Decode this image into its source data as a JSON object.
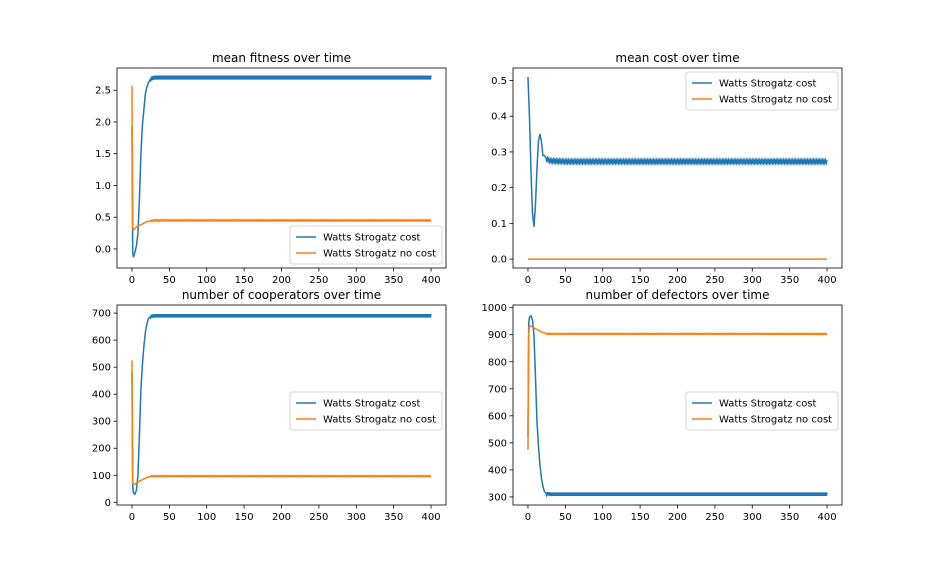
{
  "chart_data": [
    {
      "type": "line",
      "title": "mean fitness over time",
      "xlabel": "",
      "ylabel": "",
      "xlim": [
        -20,
        420
      ],
      "ylim": [
        -0.3,
        2.85
      ],
      "xticks": [
        0,
        50,
        100,
        150,
        200,
        250,
        300,
        350,
        400
      ],
      "yticks": [
        0.0,
        0.5,
        1.0,
        1.5,
        2.0,
        2.5
      ],
      "ytick_labels": [
        "0.0",
        "0.5",
        "1.0",
        "1.5",
        "2.0",
        "2.5"
      ],
      "legend": "lower-right",
      "series": [
        {
          "name": "Watts Strogatz cost",
          "color": "#1f77b4",
          "x": [
            0,
            1,
            2,
            4,
            6,
            8,
            10,
            12,
            14,
            16,
            18,
            20,
            22,
            25,
            30,
            50,
            100,
            200,
            300,
            400
          ],
          "y": [
            1.93,
            -0.05,
            -0.13,
            -0.05,
            0.05,
            0.25,
            0.8,
            1.5,
            1.95,
            2.2,
            2.45,
            2.55,
            2.62,
            2.68,
            2.7,
            2.7,
            2.7,
            2.7,
            2.7,
            2.7
          ],
          "oscillation": 0.03
        },
        {
          "name": "Watts Strogatz no cost",
          "color": "#ff7f0e",
          "x": [
            0,
            1,
            2,
            4,
            6,
            8,
            10,
            15,
            20,
            25,
            30,
            50,
            100,
            200,
            300,
            400
          ],
          "y": [
            2.57,
            0.35,
            0.3,
            0.32,
            0.35,
            0.36,
            0.37,
            0.4,
            0.43,
            0.44,
            0.45,
            0.45,
            0.45,
            0.45,
            0.45,
            0.45
          ],
          "oscillation": 0.008
        }
      ]
    },
    {
      "type": "line",
      "title": "mean cost over time",
      "xlabel": "",
      "ylabel": "",
      "xlim": [
        -20,
        420
      ],
      "ylim": [
        -0.025,
        0.535
      ],
      "xticks": [
        0,
        50,
        100,
        150,
        200,
        250,
        300,
        350,
        400
      ],
      "yticks": [
        0.0,
        0.1,
        0.2,
        0.3,
        0.4,
        0.5
      ],
      "ytick_labels": [
        "0.0",
        "0.1",
        "0.2",
        "0.3",
        "0.4",
        "0.5"
      ],
      "legend": "upper-right",
      "series": [
        {
          "name": "Watts Strogatz cost",
          "color": "#1f77b4",
          "x": [
            0,
            2,
            4,
            6,
            8,
            10,
            12,
            14,
            16,
            18,
            20,
            22,
            25,
            30,
            50,
            100,
            200,
            300,
            400
          ],
          "y": [
            0.51,
            0.4,
            0.25,
            0.13,
            0.09,
            0.15,
            0.25,
            0.33,
            0.35,
            0.33,
            0.29,
            0.29,
            0.28,
            0.275,
            0.273,
            0.273,
            0.273,
            0.273,
            0.273
          ],
          "oscillation": 0.004
        },
        {
          "name": "Watts Strogatz no cost",
          "color": "#ff7f0e",
          "x": [
            0,
            400
          ],
          "y": [
            0.0,
            0.0
          ],
          "oscillation": 0
        }
      ]
    },
    {
      "type": "line",
      "title": "number of cooperators over time",
      "xlabel": "",
      "ylabel": "",
      "xlim": [
        -20,
        420
      ],
      "ylim": [
        -10,
        730
      ],
      "xticks": [
        0,
        50,
        100,
        150,
        200,
        250,
        300,
        350,
        400
      ],
      "yticks": [
        0,
        100,
        200,
        300,
        400,
        500,
        600,
        700
      ],
      "ytick_labels": [
        "0",
        "100",
        "200",
        "300",
        "400",
        "500",
        "600",
        "700"
      ],
      "legend": "center-right",
      "series": [
        {
          "name": "Watts Strogatz cost",
          "color": "#1f77b4",
          "x": [
            0,
            1,
            2,
            4,
            6,
            8,
            10,
            12,
            14,
            16,
            18,
            20,
            22,
            25,
            30,
            50,
            100,
            200,
            300,
            400
          ],
          "y": [
            480,
            60,
            35,
            30,
            45,
            100,
            250,
            420,
            510,
            580,
            630,
            660,
            680,
            688,
            690,
            690,
            690,
            690,
            690,
            690
          ],
          "oscillation": 6
        },
        {
          "name": "Watts Strogatz no cost",
          "color": "#ff7f0e",
          "x": [
            0,
            1,
            2,
            4,
            6,
            8,
            10,
            15,
            20,
            25,
            30,
            50,
            100,
            200,
            300,
            400
          ],
          "y": [
            525,
            80,
            65,
            68,
            72,
            75,
            78,
            85,
            92,
            96,
            97,
            97,
            97,
            97,
            97,
            97
          ],
          "oscillation": 1.5
        }
      ]
    },
    {
      "type": "line",
      "title": "number of defectors over time",
      "xlabel": "",
      "ylabel": "",
      "xlim": [
        -20,
        420
      ],
      "ylim": [
        270,
        1010
      ],
      "xticks": [
        0,
        50,
        100,
        150,
        200,
        250,
        300,
        350,
        400
      ],
      "yticks": [
        300,
        400,
        500,
        600,
        700,
        800,
        900,
        1000
      ],
      "ytick_labels": [
        "300",
        "400",
        "500",
        "600",
        "700",
        "800",
        "900",
        "1000"
      ],
      "legend": "center-right",
      "series": [
        {
          "name": "Watts Strogatz cost",
          "color": "#1f77b4",
          "x": [
            0,
            1,
            2,
            4,
            6,
            8,
            10,
            12,
            14,
            16,
            18,
            20,
            22,
            25,
            30,
            50,
            100,
            200,
            300,
            400
          ],
          "y": [
            520,
            940,
            965,
            970,
            955,
            900,
            750,
            580,
            490,
            420,
            370,
            340,
            320,
            312,
            310,
            310,
            310,
            310,
            310,
            310
          ],
          "oscillation": 6
        },
        {
          "name": "Watts Strogatz no cost",
          "color": "#ff7f0e",
          "x": [
            0,
            1,
            2,
            4,
            6,
            8,
            10,
            15,
            20,
            25,
            30,
            50,
            100,
            200,
            300,
            400
          ],
          "y": [
            475,
            900,
            935,
            932,
            928,
            925,
            922,
            915,
            908,
            904,
            903,
            903,
            903,
            903,
            903,
            903
          ],
          "oscillation": 1.5
        }
      ]
    }
  ]
}
